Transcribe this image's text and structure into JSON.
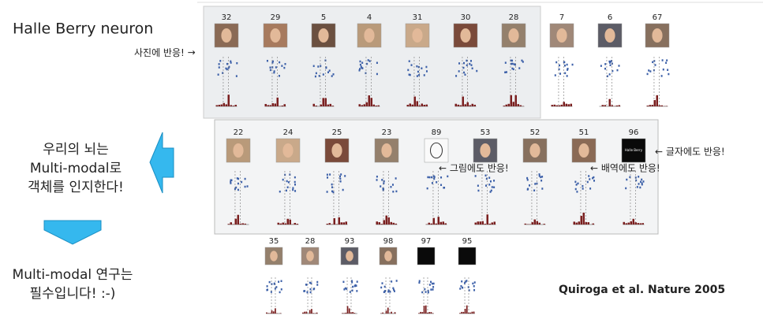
{
  "title": "Halle Berry neuron",
  "photo_note": "사진에 반응!",
  "brain_note": [
    "우리의 뇌는",
    "Multi-modal로",
    "객체를 인지한다!"
  ],
  "research_note": [
    "Multi-modal 연구는",
    "필수입니다! :-)"
  ],
  "drawing_note": "← 그림에도 반응!",
  "role_note": "← 배역에도 반응!",
  "text_note": "← 글자에도 반응!",
  "citation": "Quiroga et al. Nature 2005",
  "name_card": "Halle Berry",
  "rows": [
    [
      "32",
      "29",
      "5",
      "4",
      "31",
      "30",
      "28",
      "7",
      "6",
      "67"
    ],
    [
      "22",
      "24",
      "25",
      "23",
      "89",
      "53",
      "52",
      "51",
      "96"
    ],
    [
      "35",
      "28",
      "93",
      "98",
      "97",
      "95"
    ]
  ]
}
